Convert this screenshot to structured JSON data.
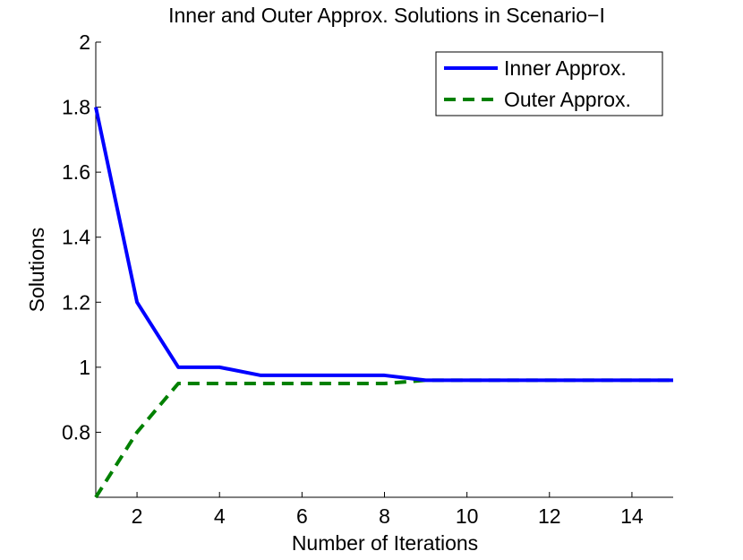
{
  "chart_data": {
    "type": "line",
    "title": "Inner and Outer Approx. Solutions in Scenario−I",
    "xlabel": "Number of Iterations",
    "ylabel": "Solutions",
    "xlim": [
      1,
      15
    ],
    "ylim": [
      0.6,
      2.0
    ],
    "xticks": [
      2,
      4,
      6,
      8,
      10,
      12,
      14
    ],
    "xtick_labels": [
      "2",
      "4",
      "6",
      "8",
      "10",
      "12",
      "14"
    ],
    "yticks": [
      0.8,
      1.0,
      1.2,
      1.4,
      1.6,
      1.8,
      2.0
    ],
    "ytick_labels": [
      "0.8",
      "1",
      "1.2",
      "1.4",
      "1.6",
      "1.8",
      "2"
    ],
    "grid": false,
    "legend_position": "top-right",
    "x": [
      1,
      2,
      3,
      4,
      5,
      6,
      7,
      8,
      9,
      10,
      11,
      12,
      13,
      14,
      15
    ],
    "series": [
      {
        "name": "Inner Approx.",
        "color": "#0000ff",
        "style": "solid",
        "values": [
          1.8,
          1.2,
          1.0,
          1.0,
          0.975,
          0.975,
          0.975,
          0.975,
          0.96,
          0.96,
          0.96,
          0.96,
          0.96,
          0.96,
          0.96
        ]
      },
      {
        "name": "Outer Approx.",
        "color": "#008000",
        "style": "dashed",
        "values": [
          0.6,
          0.8,
          0.95,
          0.95,
          0.95,
          0.95,
          0.95,
          0.95,
          0.96,
          0.96,
          0.96,
          0.96,
          0.96,
          0.96,
          0.96
        ]
      }
    ]
  }
}
